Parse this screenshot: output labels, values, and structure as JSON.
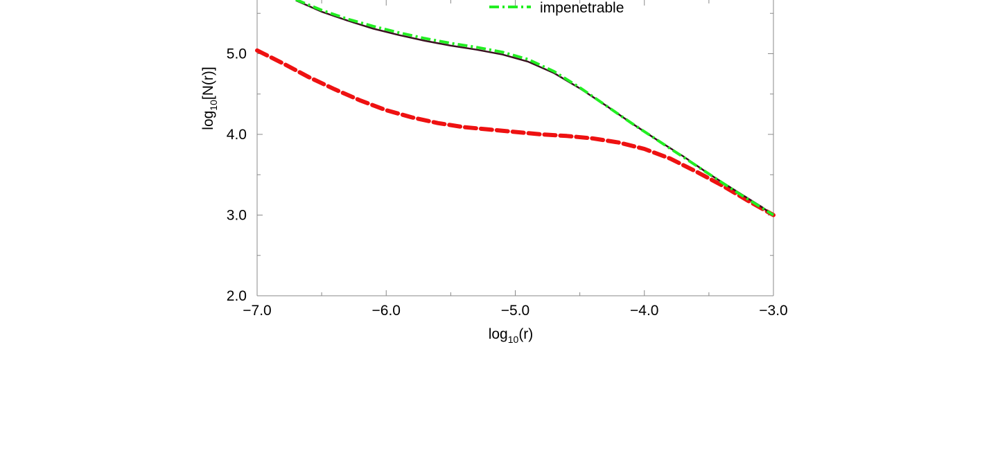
{
  "chart_data": {
    "type": "line",
    "title": "",
    "xlabel": {
      "base": "log",
      "sub": "10",
      "rest": "(r)"
    },
    "ylabel": {
      "base": "log",
      "sub": "10",
      "rest": "[N(r)]"
    },
    "xlim": [
      -7.0,
      -3.0
    ],
    "ylim": [
      2.0,
      6.0
    ],
    "x_ticks": [
      -7.0,
      -6.0,
      -5.0,
      -4.0,
      -3.0
    ],
    "x_tick_labels": [
      "−7.0",
      "−6.0",
      "−5.0",
      "−4.0",
      "−3.0"
    ],
    "y_ticks": [
      2.0,
      3.0,
      4.0,
      5.0
    ],
    "y_tick_labels": [
      "2.0",
      "3.0",
      "4.0",
      "5.0"
    ],
    "grid": false,
    "legend": {
      "placement": "top-center",
      "visible_entries": [
        "impenetrable"
      ]
    },
    "series": [
      {
        "color": "#3a1020",
        "style": "solid",
        "x": [
          -6.7,
          -6.5,
          -6.3,
          -6.1,
          -5.9,
          -5.7,
          -5.5,
          -5.3,
          -5.1,
          -4.9,
          -4.7,
          -4.5,
          -4.3,
          -4.1,
          -3.9,
          -3.7,
          -3.5,
          -3.3,
          -3.1,
          -3.0
        ],
        "y": [
          5.66,
          5.52,
          5.41,
          5.31,
          5.23,
          5.16,
          5.1,
          5.05,
          4.99,
          4.9,
          4.76,
          4.57,
          4.36,
          4.14,
          3.93,
          3.73,
          3.51,
          3.31,
          3.11,
          3.0
        ]
      },
      {
        "name": "impenetrable",
        "color": "#22ee22",
        "style": "dashdot",
        "x": [
          -6.7,
          -6.5,
          -6.3,
          -6.1,
          -5.9,
          -5.7,
          -5.5,
          -5.3,
          -5.1,
          -4.9,
          -4.7,
          -4.5,
          -4.3,
          -4.1,
          -3.9,
          -3.7,
          -3.5,
          -3.3,
          -3.1,
          -3.0
        ],
        "y": [
          5.67,
          5.54,
          5.43,
          5.34,
          5.26,
          5.19,
          5.13,
          5.08,
          5.02,
          4.93,
          4.78,
          4.58,
          4.36,
          4.14,
          3.93,
          3.72,
          3.51,
          3.3,
          3.1,
          3.0
        ]
      },
      {
        "color": "#ee1111",
        "style": "dashed",
        "x": [
          -7.0,
          -6.8,
          -6.6,
          -6.4,
          -6.2,
          -6.0,
          -5.8,
          -5.6,
          -5.4,
          -5.2,
          -5.0,
          -4.8,
          -4.6,
          -4.4,
          -4.2,
          -4.0,
          -3.8,
          -3.6,
          -3.4,
          -3.2,
          -3.0
        ],
        "y": [
          5.04,
          4.88,
          4.71,
          4.56,
          4.42,
          4.3,
          4.21,
          4.14,
          4.09,
          4.06,
          4.03,
          4.0,
          3.98,
          3.95,
          3.9,
          3.82,
          3.7,
          3.54,
          3.37,
          3.18,
          3.0
        ]
      }
    ]
  }
}
